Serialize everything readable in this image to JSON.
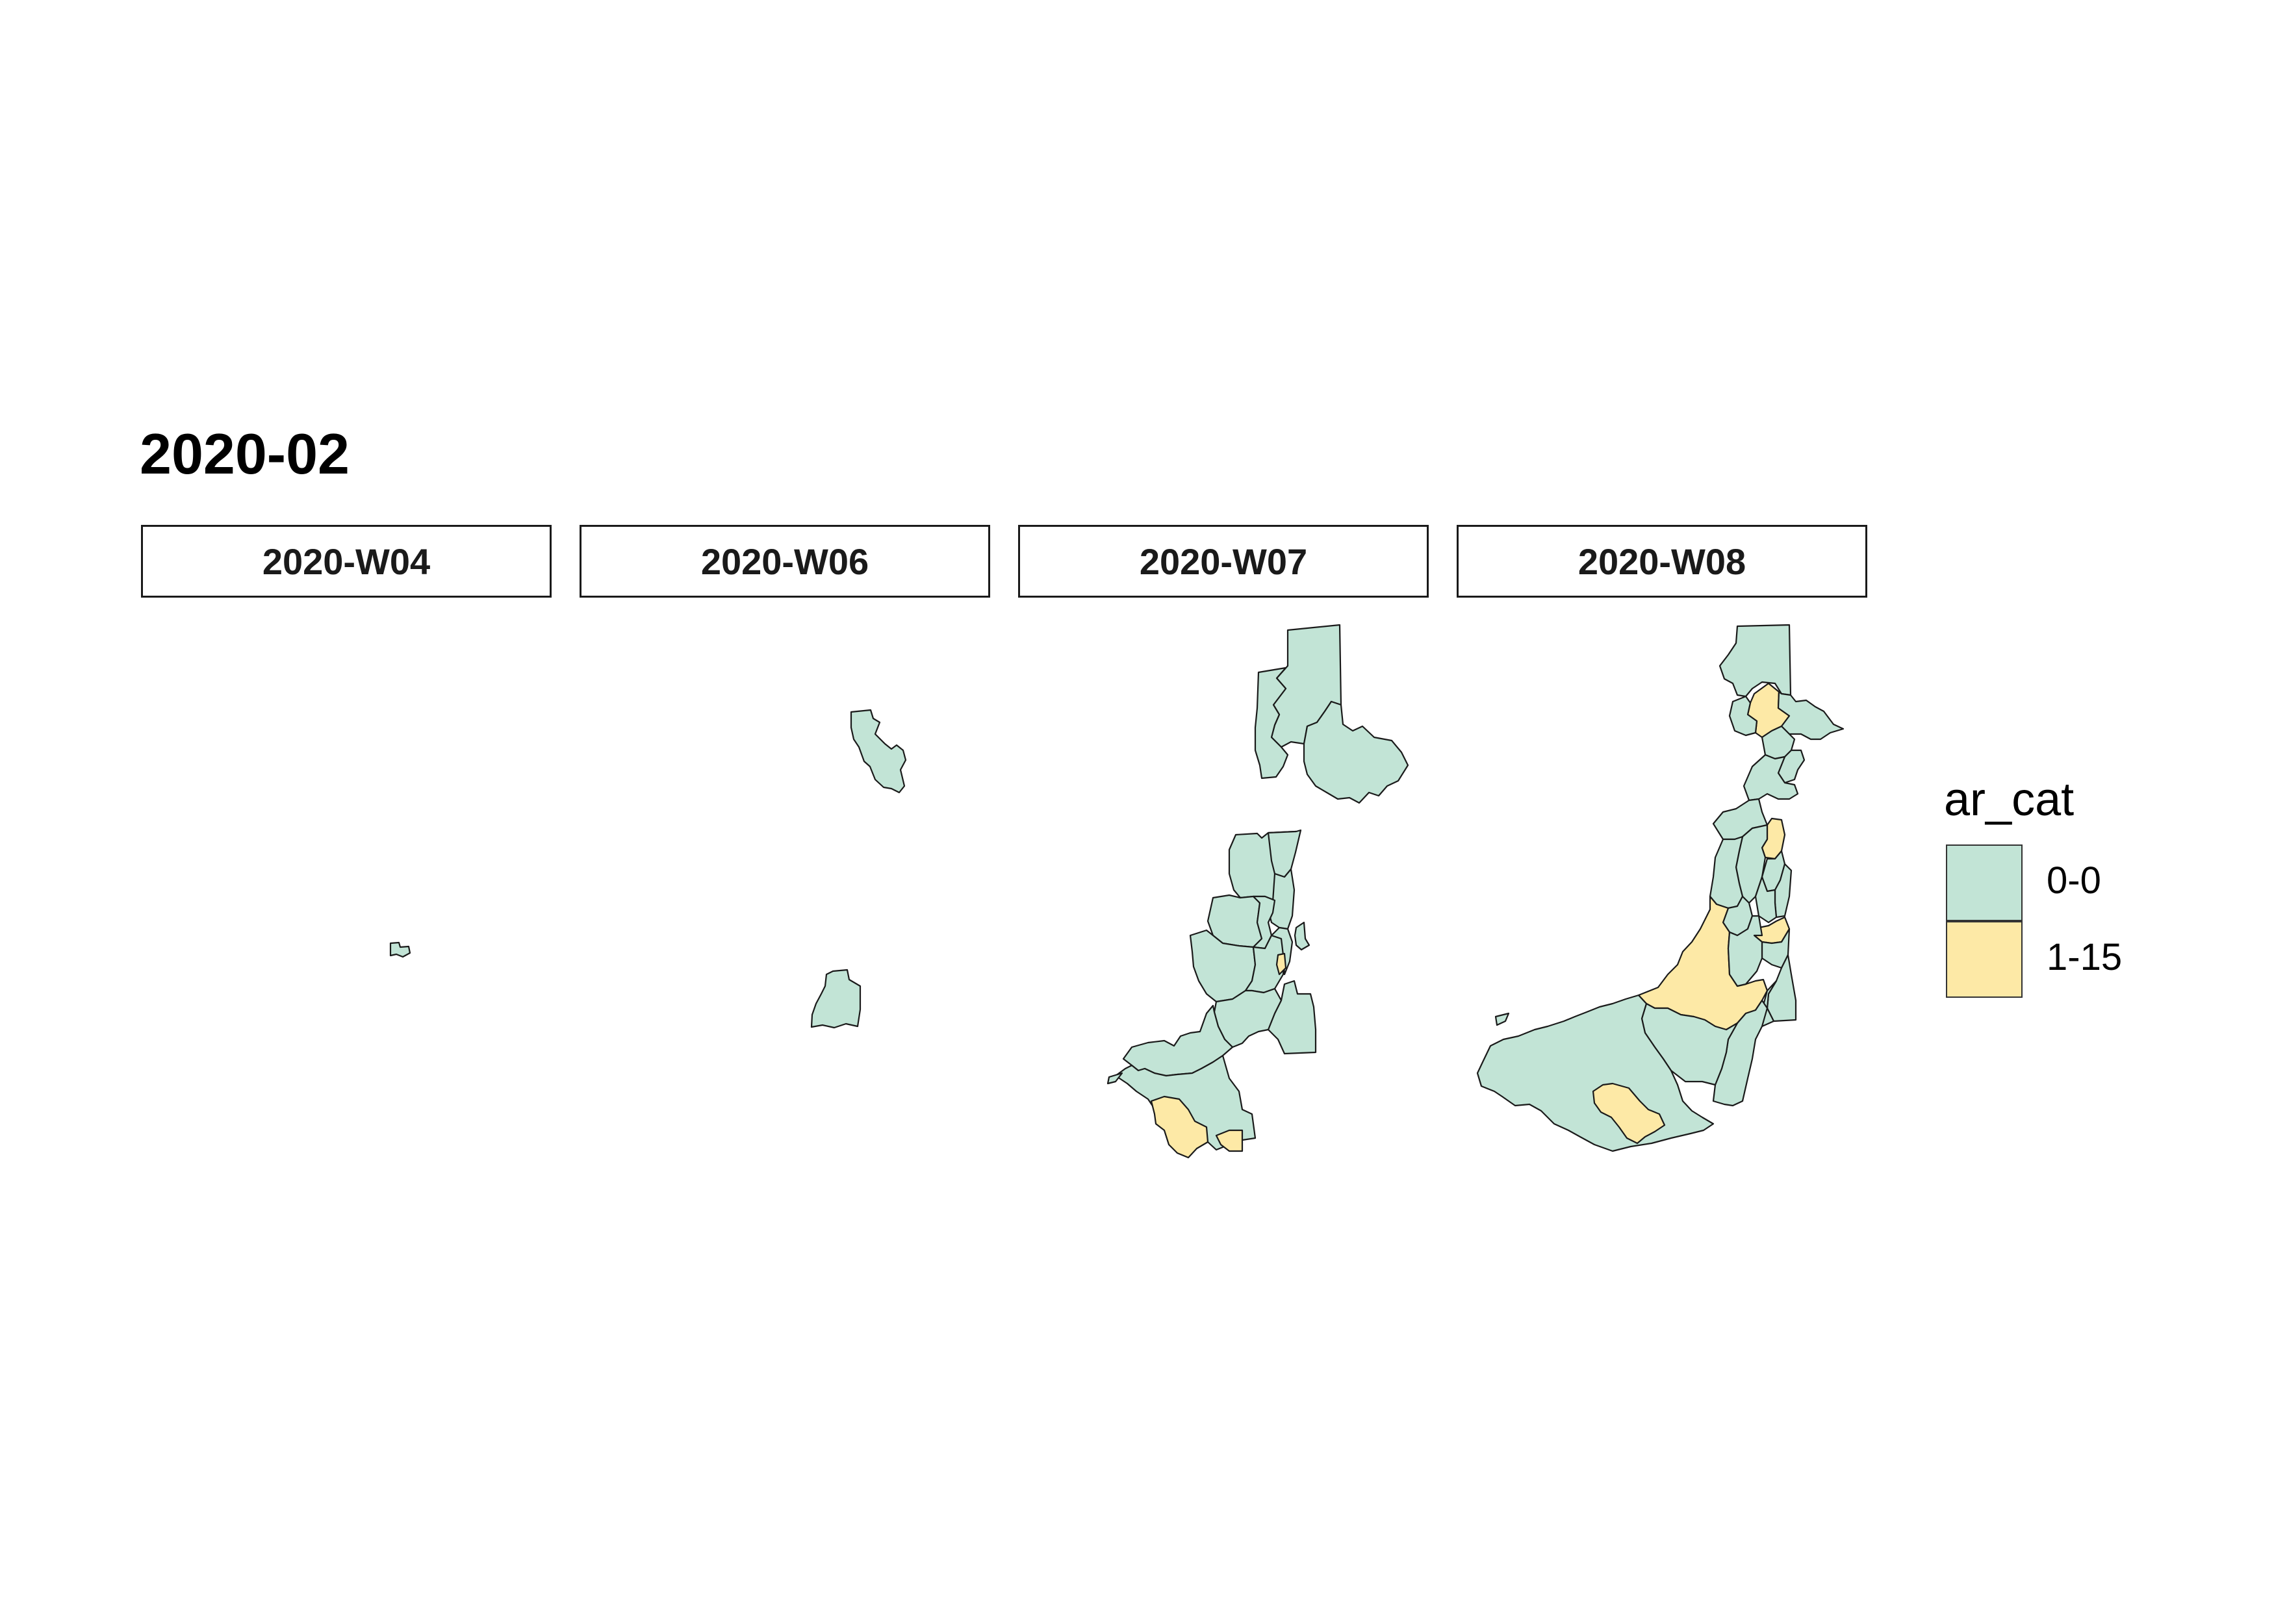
{
  "title": "2020-02",
  "facets": [
    {
      "label": "2020-W04"
    },
    {
      "label": "2020-W06"
    },
    {
      "label": "2020-W07"
    },
    {
      "label": "2020-W08"
    }
  ],
  "legend": {
    "title": "ar_cat",
    "items": [
      {
        "label": "0-0",
        "color": "#c2e4d6"
      },
      {
        "label": "1-15",
        "color": "#fde9a6"
      }
    ]
  },
  "colors": {
    "low": "#c2e4d6",
    "high": "#fde9a6",
    "border": "#1a1a1a"
  }
}
